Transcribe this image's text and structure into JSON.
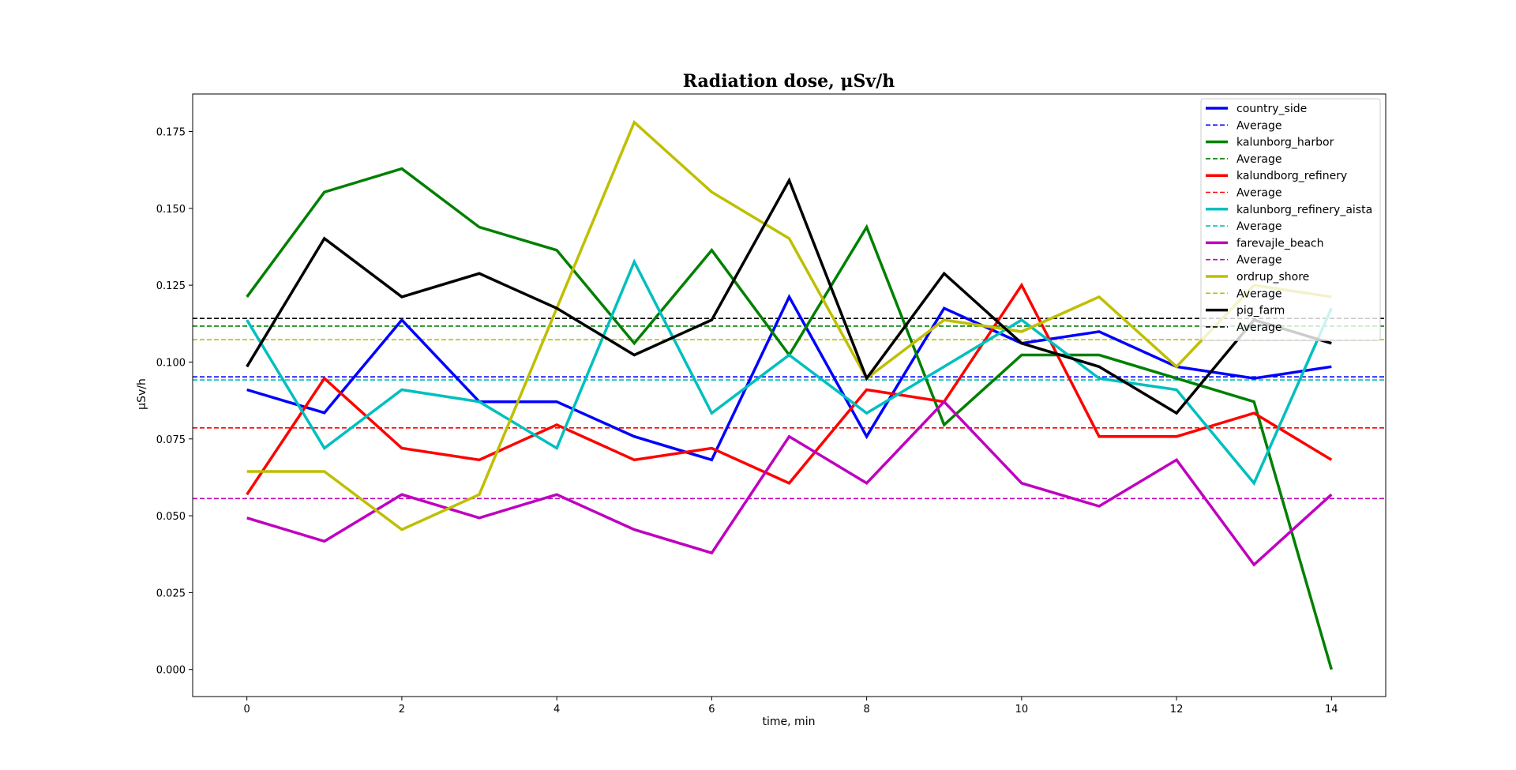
{
  "chart_data": {
    "type": "line",
    "title": "Radiation dose, μSv/h",
    "xlabel": "time, min",
    "ylabel": "μSv/h",
    "xlim": [
      -0.7,
      14.7
    ],
    "ylim": [
      -0.0088,
      0.1872
    ],
    "xticks": [
      0,
      2,
      4,
      6,
      8,
      10,
      12,
      14
    ],
    "yticks": [
      0.0,
      0.025,
      0.05,
      0.075,
      0.1,
      0.125,
      0.15,
      0.175
    ],
    "ytick_labels": [
      "0.000",
      "0.025",
      "0.050",
      "0.075",
      "0.100",
      "0.125",
      "0.150",
      "0.175"
    ],
    "grid": false,
    "legend_position": "upper right",
    "x": [
      0,
      1,
      2,
      3,
      4,
      5,
      6,
      7,
      8,
      9,
      10,
      11,
      12,
      13,
      14
    ],
    "series": [
      {
        "name": "country_side",
        "color": "#0000ff",
        "average": 0.0952,
        "average_label": "Average",
        "values": [
          0.091,
          0.0835,
          0.1137,
          0.0871,
          0.0871,
          0.0758,
          0.0682,
          0.1212,
          0.0758,
          0.1175,
          0.1061,
          0.1099,
          0.0985,
          0.0947,
          0.0985
        ]
      },
      {
        "name": "kalunborg_harbor",
        "color": "#008000",
        "average": 0.1117,
        "average_label": "Average",
        "values": [
          0.1212,
          0.1553,
          0.1629,
          0.1439,
          0.1364,
          0.1061,
          0.1364,
          0.1023,
          0.1439,
          0.0796,
          0.1023,
          0.1023,
          0.0947,
          0.0871,
          0.0
        ]
      },
      {
        "name": "kalundborg_refinery",
        "color": "#ff0000",
        "average": 0.0786,
        "average_label": "Average",
        "values": [
          0.0569,
          0.0947,
          0.072,
          0.0682,
          0.0796,
          0.0682,
          0.072,
          0.0606,
          0.091,
          0.0871,
          0.125,
          0.0758,
          0.0758,
          0.0834,
          0.0682
        ]
      },
      {
        "name": "kalunborg_refinery_aista",
        "color": "#00bfbf",
        "average": 0.0942,
        "average_label": "Average",
        "values": [
          0.1137,
          0.072,
          0.091,
          0.0871,
          0.072,
          0.1326,
          0.0834,
          0.1023,
          0.0834,
          0.0985,
          0.1137,
          0.0947,
          0.091,
          0.0606,
          0.1175
        ]
      },
      {
        "name": "farevajle_beach",
        "color": "#bf00bf",
        "average": 0.0556,
        "average_label": "Average",
        "values": [
          0.0493,
          0.0417,
          0.0569,
          0.0493,
          0.0569,
          0.0455,
          0.0379,
          0.0758,
          0.0606,
          0.0871,
          0.0606,
          0.0531,
          0.0682,
          0.0341,
          0.0569
        ]
      },
      {
        "name": "ordrup_shore",
        "color": "#bfbf00",
        "average": 0.1073,
        "average_label": "Average",
        "values": [
          0.0644,
          0.0644,
          0.0455,
          0.0569,
          0.1175,
          0.178,
          0.1553,
          0.1402,
          0.0947,
          0.1137,
          0.1099,
          0.1212,
          0.0985,
          0.125,
          0.1212
        ]
      },
      {
        "name": "pig_farm",
        "color": "#000000",
        "average": 0.1142,
        "average_label": "Average",
        "values": [
          0.0985,
          0.1402,
          0.1212,
          0.1288,
          0.1175,
          0.1023,
          0.1137,
          0.1591,
          0.0947,
          0.1288,
          0.1061,
          0.0985,
          0.0834,
          0.1137,
          0.1061
        ]
      }
    ]
  }
}
